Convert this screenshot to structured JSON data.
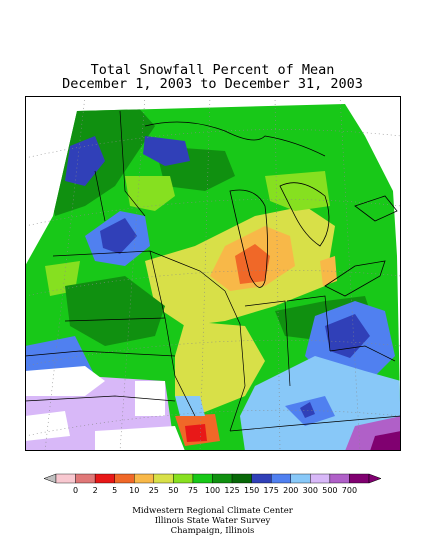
{
  "title": {
    "line1": "Total Snowfall Percent of Mean",
    "line2": "December 1, 2003 to December 31, 2003"
  },
  "legend": {
    "labels": [
      "0",
      "2",
      "5",
      "10",
      "25",
      "50",
      "75",
      "100",
      "125",
      "150",
      "175",
      "200",
      "300",
      "500",
      "700"
    ],
    "colors": [
      "#f8c8d0",
      "#e07878",
      "#e81818",
      "#f06828",
      "#f8b848",
      "#d8e048",
      "#88e020",
      "#18c818",
      "#109010",
      "#086808",
      "#3040b8",
      "#5080f0",
      "#88c8f8",
      "#d8b8f8",
      "#b060c8",
      "#800070"
    ],
    "below_color": "#c0c0c0"
  },
  "credits": {
    "line1": "Midwestern Regional Climate Center",
    "line2": "Illinois State Water Survey",
    "line3": "Champaign, Illinois"
  }
}
